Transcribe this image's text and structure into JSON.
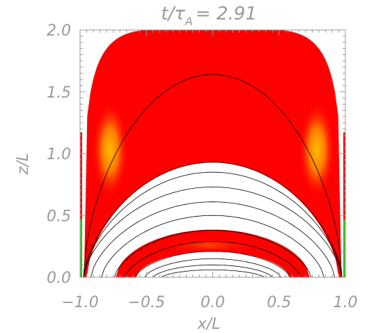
{
  "chart_data": {
    "type": "heatmap",
    "title_parts": {
      "t": "t",
      "slash": "/",
      "tau": "τ",
      "sub": "A",
      "rest": "= 2.91"
    },
    "xlabel": "x/L",
    "ylabel": "z/L",
    "xlim": [
      -1.0,
      1.0
    ],
    "ylim": [
      0.0,
      2.0
    ],
    "x_tick_labels": [
      "-1.0",
      "-0.5",
      "0.0",
      "0.5",
      "1.0"
    ],
    "x_tick_values": [
      -1.0,
      -0.5,
      0.0,
      0.5,
      1.0
    ],
    "y_tick_labels": [
      "0.0",
      "0.5",
      "1.0",
      "1.5",
      "2.0"
    ],
    "y_tick_values": [
      0.0,
      0.5,
      1.0,
      1.5,
      2.0
    ],
    "field_line_apex_heights": [
      0.06,
      0.1,
      0.15,
      0.21,
      0.29,
      0.38,
      0.5,
      0.61,
      0.73,
      0.85,
      0.93,
      1.64
    ],
    "colors": {
      "emission_base": "#ff0000",
      "emission_bright": "#ffcc00",
      "edge_green": "#22cc00",
      "field_lines": "#000000",
      "axes": "#9a9a9a"
    }
  }
}
